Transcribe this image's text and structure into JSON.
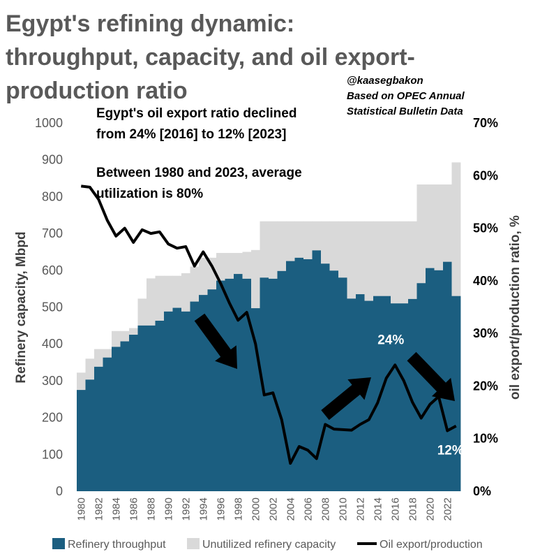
{
  "chart_data": {
    "type": "bar",
    "title_lines": [
      "Egypt's refining dynamic:",
      "throughput, capacity, and oil export-",
      "production ratio"
    ],
    "source_lines": [
      "@kaasegbakon",
      "Based on OPEC Annual",
      "Statistical Bulletin Data"
    ],
    "annotations": [
      {
        "lines": [
          "Egypt's oil export ratio declined",
          "from 24% [2016] to 12% [2023]"
        ]
      },
      {
        "lines": [
          "Between 1980 and 2023, average",
          "utilization is 80%"
        ]
      }
    ],
    "x": [
      1980,
      1981,
      1982,
      1983,
      1984,
      1985,
      1986,
      1987,
      1988,
      1989,
      1990,
      1991,
      1992,
      1993,
      1994,
      1995,
      1996,
      1997,
      1998,
      1999,
      2000,
      2001,
      2002,
      2003,
      2004,
      2005,
      2006,
      2007,
      2008,
      2009,
      2010,
      2011,
      2012,
      2013,
      2014,
      2015,
      2016,
      2017,
      2018,
      2019,
      2020,
      2021,
      2022,
      2023
    ],
    "x_tick_labels": [
      "1980",
      "1982",
      "1984",
      "1986",
      "1988",
      "1990",
      "1992",
      "1994",
      "1996",
      "1998",
      "2000",
      "2002",
      "2004",
      "2006",
      "2008",
      "2010",
      "2012",
      "2014",
      "2016",
      "2018",
      "2020",
      "2022"
    ],
    "series": [
      {
        "name": "Refinery throughput",
        "axis": "left",
        "color": "#1b5e80",
        "values": [
          275,
          303,
          338,
          363,
          392,
          407,
          425,
          450,
          450,
          463,
          488,
          498,
          488,
          515,
          533,
          548,
          572,
          577,
          590,
          577,
          497,
          580,
          577,
          598,
          625,
          634,
          630,
          654,
          618,
          599,
          580,
          523,
          535,
          517,
          530,
          530,
          510,
          510,
          522,
          565,
          606,
          600,
          623,
          530
        ]
      },
      {
        "name": "Unutilized refinery capacity",
        "axis": "left",
        "color": "#d9d9d9",
        "capacity_total": [
          322,
          360,
          386,
          386,
          435,
          435,
          443,
          523,
          578,
          585,
          585,
          585,
          592,
          610,
          634,
          634,
          647,
          647,
          647,
          650,
          655,
          733,
          733,
          733,
          733,
          733,
          733,
          733,
          733,
          733,
          733,
          733,
          733,
          733,
          733,
          733,
          733,
          733,
          733,
          833,
          833,
          833,
          833,
          893
        ]
      },
      {
        "name": "Oil export/production",
        "axis": "right",
        "color": "#000000",
        "values": [
          58,
          57.8,
          55.5,
          51.5,
          48.5,
          50,
          47.3,
          49.7,
          49,
          49.3,
          47,
          46.2,
          46.5,
          42.8,
          45.5,
          42.8,
          39.5,
          35.8,
          32.5,
          34,
          28,
          18.3,
          18.7,
          13.6,
          5.3,
          8.5,
          7.8,
          6.2,
          12.7,
          11.8,
          11.7,
          11.6,
          12.7,
          13.6,
          16.8,
          21.5,
          24,
          21,
          16.9,
          13.9,
          16.5,
          18,
          11.5,
          12.4
        ]
      }
    ],
    "left_axis": {
      "label": "Refinery capacity, Mbpd",
      "ylim": [
        0,
        1000
      ],
      "ticks": [
        "0",
        "100",
        "200",
        "300",
        "400",
        "500",
        "600",
        "700",
        "800",
        "900",
        "1000"
      ]
    },
    "right_axis": {
      "label": "oil export/production ratio, %",
      "ylim": [
        0,
        70
      ],
      "ticks": [
        "0%",
        "10%",
        "20%",
        "30%",
        "40%",
        "50%",
        "60%",
        "70%"
      ]
    },
    "data_labels": [
      {
        "text": "24%",
        "x": 2016,
        "y": 24
      },
      {
        "text": "12%",
        "x": 2023,
        "y": 12
      }
    ],
    "legend": {
      "placement": "bottom",
      "items": [
        "Refinery throughput",
        "Unutilized refinery capacity",
        "Oil export/production"
      ]
    },
    "grid": false
  }
}
